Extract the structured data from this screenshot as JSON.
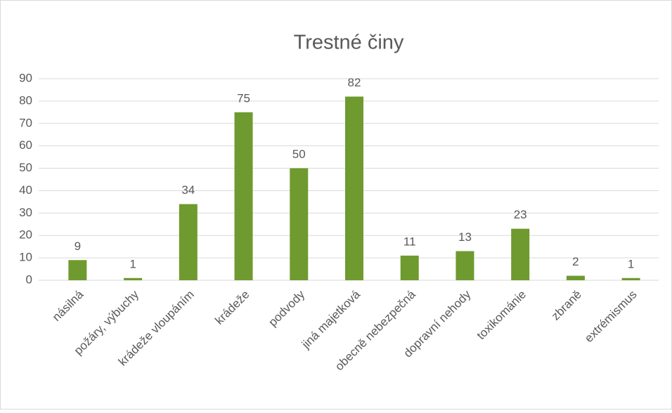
{
  "chart_data": {
    "type": "bar",
    "title": "Trestné činy",
    "categories": [
      "násilná",
      "požáry, výbuchy",
      "krádeže vloupáním",
      "krádeže",
      "podvody",
      "jiná majetková",
      "obecně nebezpečná",
      "dopravní nehody",
      "toxikománie",
      "zbraně",
      "extrémismus"
    ],
    "values": [
      9,
      1,
      34,
      75,
      50,
      82,
      11,
      13,
      23,
      2,
      1
    ],
    "color": "#6f9a2f",
    "ylim": [
      0,
      90
    ],
    "yticks": [
      0,
      10,
      20,
      30,
      40,
      50,
      60,
      70,
      80,
      90
    ],
    "grid": true
  }
}
